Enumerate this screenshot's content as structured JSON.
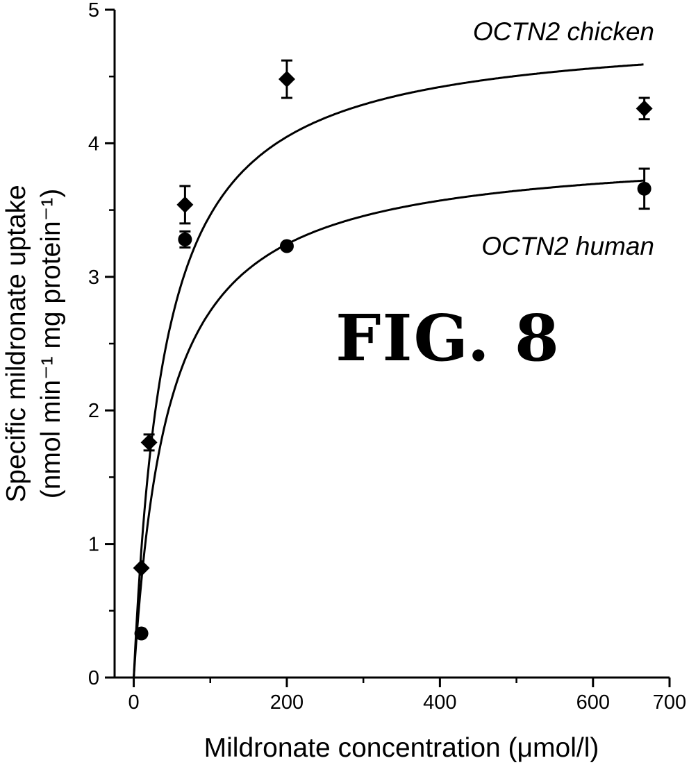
{
  "chart_data": {
    "type": "scatter",
    "figure_label": "FIG. 8",
    "xlabel": "Mildronate concentration (μmol/l)",
    "ylabel_line1": "Specific mildronate uptake",
    "ylabel_line2": "(nmol min⁻¹ mg protein⁻¹)",
    "xlim": [
      -25,
      700
    ],
    "ylim": [
      0,
      5
    ],
    "xticks": [
      0,
      200,
      400,
      600,
      700
    ],
    "xtick_labels": [
      "0",
      "200",
      "400",
      "600",
      "700"
    ],
    "yticks": [
      0,
      1,
      2,
      3,
      4,
      5
    ],
    "ytick_labels": [
      "0",
      "1",
      "2",
      "3",
      "4",
      "5"
    ],
    "grid": false,
    "series": [
      {
        "name": "OCTN2 chicken",
        "marker": "diamond",
        "x": [
          10,
          20,
          67,
          200,
          667
        ],
        "y": [
          0.82,
          1.76,
          3.54,
          4.48,
          4.26
        ],
        "yerr": [
          0.0,
          0.06,
          0.14,
          0.14,
          0.08
        ],
        "fit": {
          "model": "Michaelis-Menten",
          "vmax": 4.87,
          "km": 40.6
        }
      },
      {
        "name": "OCTN2 human",
        "marker": "circle",
        "x": [
          10,
          67,
          200,
          667
        ],
        "y": [
          0.33,
          3.28,
          3.23,
          3.66
        ],
        "yerr": [
          0.0,
          0.06,
          0.0,
          0.15
        ],
        "fit": {
          "model": "Michaelis-Menten",
          "vmax": 3.97,
          "km": 44.7
        }
      }
    ]
  }
}
